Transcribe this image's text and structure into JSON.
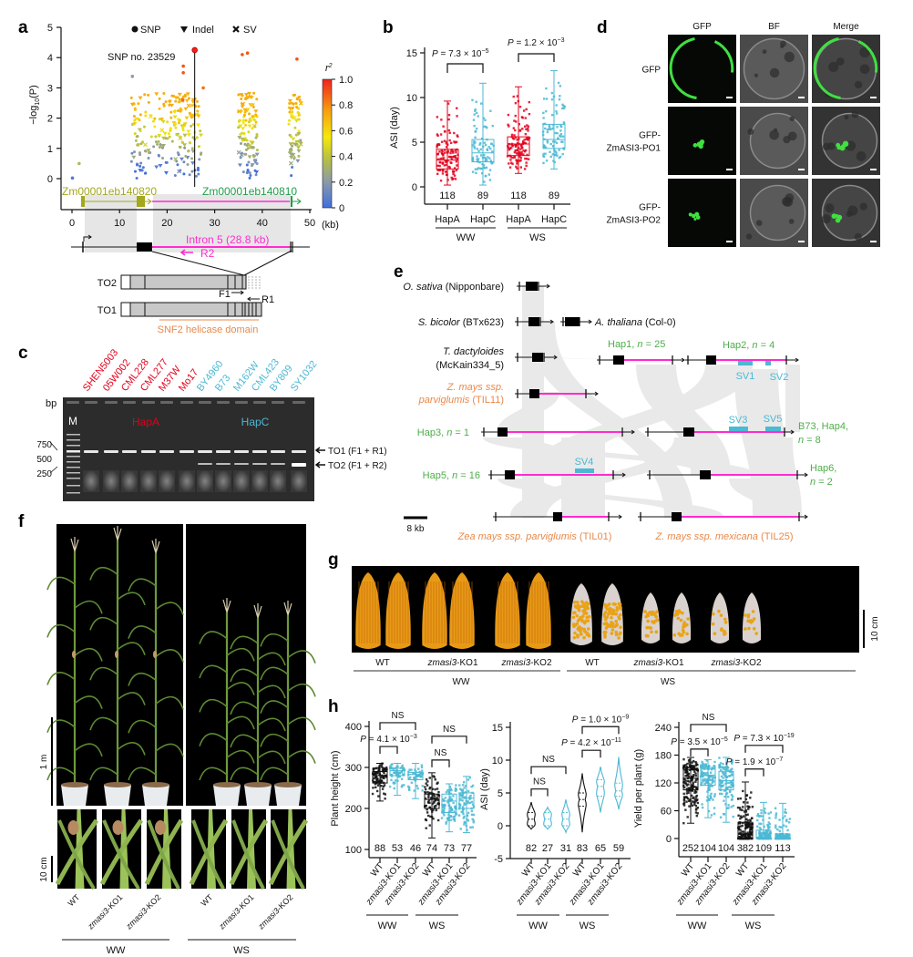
{
  "panel_labels": {
    "a": "a",
    "b": "b",
    "c": "c",
    "d": "d",
    "e": "e",
    "f": "f",
    "g": "g",
    "h": "h"
  },
  "colors": {
    "hapA": "#e3001b",
    "hapC": "#4bb8d4",
    "wt": "#111111",
    "ko": "#4bb8d4",
    "intron": "#ff2bd0",
    "hap_text": "#4fae4a",
    "teosinte_text": "#e8894a",
    "gene1": "#a3a81c",
    "gene2": "#1f9e4a"
  },
  "panel_a": {
    "legend": {
      "snp": "SNP",
      "indel": "Indel",
      "sv": "SV"
    },
    "lead_snp_label": "SNP no. 23529",
    "ylabel": {
      "prefix": "−log",
      "sub": "10",
      "suffix": "(P)"
    },
    "xunit": "(kb)",
    "colorbar": {
      "title": "r",
      "title_sup": "2",
      "ticks": [
        "0",
        "0.2",
        "0.4",
        "0.6",
        "0.8",
        "1.0"
      ]
    },
    "gene1": "Zm00001eb140820",
    "gene2": "Zm00001eb140810",
    "intron_label": "Intron 5 (28.8 kb)",
    "primers": {
      "r2": "R2",
      "f1": "F1",
      "r1": "R1"
    },
    "transcripts": {
      "to2": "TO2",
      "to1": "TO1"
    },
    "domain_label": "SNF2 helicase domain"
  },
  "panel_b": {
    "p_ww": {
      "text": "P = 7.3 × 10",
      "exp": "−5"
    },
    "p_ws": {
      "text": "P = 1.2 × 10",
      "exp": "−3"
    },
    "groups": {
      "ww": "WW",
      "ws": "WS"
    }
  },
  "panel_c": {
    "bp_label": "bp",
    "marker": "M",
    "size_labels": [
      "750",
      "500",
      "250"
    ],
    "hapA_label": "HapA",
    "hapC_label": "HapC",
    "lanes": [
      {
        "name": "SHEN5003",
        "hap": "A",
        "to2": 0
      },
      {
        "name": "05W002",
        "hap": "A",
        "to2": 0
      },
      {
        "name": "CML228",
        "hap": "A",
        "to2": 0
      },
      {
        "name": "CML277",
        "hap": "A",
        "to2": 0
      },
      {
        "name": "M37W",
        "hap": "A",
        "to2": 0
      },
      {
        "name": "Mo17",
        "hap": "A",
        "to2": 0
      },
      {
        "name": "BY4960",
        "hap": "C",
        "to2": 1
      },
      {
        "name": "B73",
        "hap": "C",
        "to2": 1
      },
      {
        "name": "M162W",
        "hap": "C",
        "to2": 1
      },
      {
        "name": "CML423",
        "hap": "C",
        "to2": 1
      },
      {
        "name": "BY809",
        "hap": "C",
        "to2": 1
      },
      {
        "name": "SY1032",
        "hap": "C",
        "to2": 2
      }
    ],
    "band_to1": "TO1 (F1 + R1)",
    "band_to2": "TO2 (F1 + R2)"
  },
  "panel_d": {
    "columns": [
      "GFP",
      "BF",
      "Merge"
    ],
    "rows": [
      {
        "line1": "GFP",
        "line2": ""
      },
      {
        "line1": "GFP-",
        "line2": "ZmASI3-PO1"
      },
      {
        "line1": "GFP-",
        "line2": "ZmASI3-PO2"
      }
    ]
  },
  "panel_e": {
    "osativa": {
      "species": "O. sativa",
      "acc": " (Nipponbare)"
    },
    "sbicolor": {
      "species": "S. bicolor",
      "acc": " (BTx623)"
    },
    "athaliana": {
      "species": "A. thaliana",
      "acc": " (Col-0)"
    },
    "tdact": {
      "species": "T. dactyloides",
      "acc": "(McKain334_5)"
    },
    "til11": {
      "line1": "Z. mays ssp.",
      "species2": "parviglumis",
      "acc": " (TIL11)"
    },
    "hap1": {
      "name": "Hap1, ",
      "n": "n",
      "val": " = 25"
    },
    "hap2": {
      "name": "Hap2, ",
      "n": "n",
      "val": " = 4"
    },
    "hap3": {
      "name": "Hap3, ",
      "n": "n",
      "val": " = 1"
    },
    "hap4": {
      "line1": "B73, Hap4,",
      "n": "n",
      "val": " = 8"
    },
    "hap5": {
      "name": "Hap5, ",
      "n": "n",
      "val": " = 16"
    },
    "hap6": {
      "line1": "Hap6,",
      "n": "n",
      "val": " = 2"
    },
    "svs": [
      "SV1",
      "SV2",
      "SV3",
      "SV4",
      "SV5"
    ],
    "til01": {
      "species": "Zea mays ssp. parviglumis",
      "acc": " (TIL01)"
    },
    "til25": {
      "species": "Z. mays ssp. mexicana",
      "acc": " (TIL25)"
    },
    "scale": "8 kb"
  },
  "panel_f": {
    "scale_1m": "1 m",
    "scale_10cm": "10 cm",
    "genotypes": [
      {
        "i": "",
        "r": "WT"
      },
      {
        "i": "zmasi3",
        "r": "-KO1"
      },
      {
        "i": "zmasi3",
        "r": "-KO2"
      }
    ],
    "groups": {
      "ww": "WW",
      "ws": "WS"
    }
  },
  "panel_g": {
    "scale": "10 cm",
    "genotypes": [
      {
        "i": "",
        "r": "WT"
      },
      {
        "i": "zmasi3",
        "r": "-KO1"
      },
      {
        "i": "zmasi3",
        "r": "-KO2"
      },
      {
        "i": "",
        "r": "WT"
      },
      {
        "i": "zmasi3",
        "r": "-KO1"
      },
      {
        "i": "zmasi3",
        "r": "-KO2"
      }
    ],
    "groups": {
      "ww": "WW",
      "ws": "WS"
    }
  },
  "chart_data": [
    {
      "id": "a",
      "type": "scatter",
      "xlabel": "(kb)",
      "ylabel": "−log10(P)",
      "xlim": [
        0,
        50
      ],
      "ylim": [
        0,
        5
      ],
      "xticks": [
        0,
        10,
        20,
        30,
        40,
        50
      ],
      "yticks": [
        0,
        1,
        2,
        3,
        4,
        5
      ],
      "legend": [
        "SNP",
        "Indel",
        "SV"
      ],
      "legend_placement": "top",
      "color_scale": "r2 0–1",
      "variant_clusters_kb": [
        [
          12.5,
          27.2
        ],
        [
          35,
          39
        ],
        [
          45.5,
          48.2
        ]
      ],
      "lead_snp": {
        "kb": 25.8,
        "logp": 4.25,
        "r2": 1.0
      },
      "highlight_points": [
        {
          "kb": 23.4,
          "logp": 3.72,
          "r2": 0.9
        },
        {
          "kb": 23.4,
          "logp": 3.5,
          "r2": 0.9
        },
        {
          "kb": 23.3,
          "logp": 2.6,
          "r2": 0.85
        },
        {
          "kb": 27.6,
          "logp": 3.0,
          "r2": 0.85
        },
        {
          "kb": 35.8,
          "logp": 4.1,
          "r2": 0.9
        },
        {
          "kb": 36.9,
          "logp": 4.15,
          "r2": 0.9
        },
        {
          "kb": 47.3,
          "logp": 3.95,
          "r2": 0.9
        },
        {
          "kb": 12.7,
          "logp": 3.38,
          "r2": 0.2
        },
        {
          "kb": 1.5,
          "logp": 0.5,
          "r2": 0.35
        },
        {
          "kb": 0.1,
          "logp": 0.02,
          "r2": 0.05
        }
      ]
    },
    {
      "id": "b",
      "type": "box",
      "ylabel": "ASI (day)",
      "ylim": [
        0,
        15
      ],
      "yticks": [
        0,
        5,
        10,
        15
      ],
      "categories": [
        "HapA",
        "HapC",
        "HapA",
        "HapC"
      ],
      "groups": [
        "WW",
        "WW",
        "WS",
        "WS"
      ],
      "n": [
        118,
        89,
        118,
        89
      ],
      "colorkeys": [
        "hapA",
        "hapC",
        "hapA",
        "hapC"
      ],
      "stats_min_q1_med_q3_max": [
        [
          0.2,
          2.0,
          3.0,
          4.2,
          9.6
        ],
        [
          0.2,
          2.8,
          3.8,
          5.3,
          11.6
        ],
        [
          1.5,
          3.5,
          4.8,
          5.6,
          11.2
        ],
        [
          2.0,
          4.3,
          5.3,
          7.0,
          13.0
        ]
      ]
    },
    {
      "id": "h1",
      "type": "box",
      "ylabel": "Plant height (cm)",
      "ylim": [
        100,
        400
      ],
      "yticks": [
        100,
        200,
        300,
        400
      ],
      "categories": [
        "WT",
        "zmasi3-KO1",
        "zmasi3-KO2",
        "WT",
        "zmasi3-KO1",
        "zmasi3-KO2"
      ],
      "groups": [
        "WW",
        "WW",
        "WW",
        "WS",
        "WS",
        "WS"
      ],
      "n": [
        88,
        53,
        46,
        74,
        73,
        77
      ],
      "colorkeys": [
        "wt",
        "ko",
        "ko",
        "wt",
        "ko",
        "ko"
      ],
      "stats_min_q1_med_q3_max": [
        [
          218,
          262,
          280,
          290,
          310
        ],
        [
          232,
          280,
          292,
          298,
          310
        ],
        [
          224,
          270,
          283,
          288,
          310
        ],
        [
          128,
          200,
          222,
          235,
          287
        ],
        [
          143,
          190,
          218,
          235,
          260
        ],
        [
          141,
          200,
          225,
          238,
          278
        ]
      ],
      "comparisons": [
        {
          "a": 0,
          "b": 2,
          "y": 409,
          "text": "NS",
          "exp": ""
        },
        {
          "a": 0,
          "b": 1,
          "y": 351,
          "text": "P = 4.1 × 10",
          "exp": "−3"
        },
        {
          "a": 3,
          "b": 5,
          "y": 376,
          "text": "NS",
          "exp": ""
        },
        {
          "a": 3,
          "b": 4,
          "y": 318,
          "text": "NS",
          "exp": ""
        }
      ]
    },
    {
      "id": "h2",
      "type": "violin",
      "ylabel": "ASI (day)",
      "ylim": [
        -5,
        15
      ],
      "yticks": [
        -5,
        0,
        5,
        10,
        15
      ],
      "categories": [
        "WT",
        "zmasi3-KO1",
        "zmasi3-KO2",
        "WT",
        "zmasi3-KO1",
        "zmasi3-KO2"
      ],
      "groups": [
        "WW",
        "WW",
        "WW",
        "WS",
        "WS",
        "WS"
      ],
      "n": [
        82,
        27,
        31,
        83,
        65,
        59
      ],
      "colorkeys": [
        "wt",
        "ko",
        "ko",
        "wt",
        "ko",
        "ko"
      ],
      "stats_min_q1_med_q3_max": [
        [
          -0.5,
          0,
          1,
          2,
          3.6
        ],
        [
          -0.5,
          0,
          1,
          2,
          2.8
        ],
        [
          -1,
          0,
          1,
          2,
          4
        ],
        [
          -1,
          3,
          4,
          5,
          8
        ],
        [
          2,
          4.5,
          6,
          7,
          9
        ],
        [
          2.5,
          4.5,
          5.3,
          6.5,
          10.5
        ]
      ],
      "comparisons": [
        {
          "a": 0,
          "b": 2,
          "y": 9,
          "text": "NS",
          "exp": ""
        },
        {
          "a": 0,
          "b": 1,
          "y": 5.6,
          "text": "NS",
          "exp": ""
        },
        {
          "a": 3,
          "b": 5,
          "y": 15.1,
          "text": "P = 1.0 × 10",
          "exp": "−9"
        },
        {
          "a": 3,
          "b": 4,
          "y": 11.5,
          "text": "P = 4.2 × 10",
          "exp": "−11"
        }
      ]
    },
    {
      "id": "h3",
      "type": "box",
      "ylabel": "Yield per plant (g)",
      "ylim": [
        0,
        240
      ],
      "yticks": [
        0,
        60,
        120,
        180,
        240
      ],
      "categories": [
        "WT",
        "zmasi3-KO1",
        "zmasi3-KO2",
        "WT",
        "zmasi3-KO1",
        "zmasi3-KO2"
      ],
      "groups": [
        "WW",
        "WW",
        "WW",
        "WS",
        "WS",
        "WS"
      ],
      "n": [
        252,
        104,
        104,
        382,
        109,
        113
      ],
      "colorkeys": [
        "wt",
        "ko",
        "ko",
        "wt",
        "ko",
        "ko"
      ],
      "stats_min_q1_med_q3_max": [
        [
          33,
          105,
          130,
          148,
          175
        ],
        [
          45,
          115,
          137,
          150,
          170
        ],
        [
          35,
          105,
          125,
          145,
          175
        ],
        [
          0,
          0,
          10,
          35,
          122
        ],
        [
          0,
          0,
          3,
          18,
          78
        ],
        [
          0,
          0,
          2,
          10,
          76
        ]
      ],
      "comparisons": [
        {
          "a": 0,
          "b": 2,
          "y": 246,
          "text": "NS",
          "exp": ""
        },
        {
          "a": 0,
          "b": 1,
          "y": 193,
          "text": "P = 3.5 × 10",
          "exp": "−5"
        },
        {
          "a": 3,
          "b": 5,
          "y": 201,
          "text": "P = 7.3 × 10",
          "exp": "−19"
        },
        {
          "a": 3,
          "b": 4,
          "y": 150,
          "text": "P = 1.9 × 10",
          "exp": "−7"
        }
      ]
    }
  ]
}
